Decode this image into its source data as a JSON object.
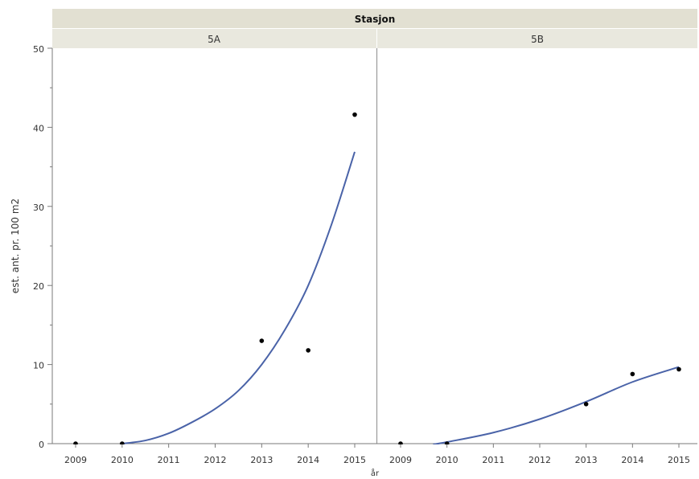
{
  "chart_data": {
    "type": "scatter",
    "group_title": "Stasjon",
    "xlabel": "år",
    "ylabel": "est. ant. pr. 100 m2",
    "ylim": [
      0,
      50
    ],
    "yticks": [
      0,
      10,
      20,
      30,
      40,
      50
    ],
    "xticks": [
      "2009",
      "2010",
      "2011",
      "2012",
      "2013",
      "2014",
      "2015"
    ],
    "colors": {
      "fit_line": "#4a63a8",
      "points": "#000000",
      "strip_bg": "#e2e0d2"
    },
    "panels": [
      {
        "name": "5A",
        "points": [
          {
            "x": 2009,
            "y": 0
          },
          {
            "x": 2010,
            "y": 0
          },
          {
            "x": 2013,
            "y": 13
          },
          {
            "x": 2014,
            "y": 11.8
          },
          {
            "x": 2015,
            "y": 41.6
          }
        ],
        "fit": [
          {
            "x": 2010,
            "y": 0
          },
          {
            "x": 2010.5,
            "y": 0.4
          },
          {
            "x": 2011,
            "y": 1.3
          },
          {
            "x": 2011.5,
            "y": 2.7
          },
          {
            "x": 2012,
            "y": 4.4
          },
          {
            "x": 2012.5,
            "y": 6.7
          },
          {
            "x": 2013,
            "y": 10
          },
          {
            "x": 2013.5,
            "y": 14.4
          },
          {
            "x": 2014,
            "y": 20
          },
          {
            "x": 2014.5,
            "y": 27.7
          },
          {
            "x": 2015,
            "y": 36.9
          }
        ]
      },
      {
        "name": "5B",
        "points": [
          {
            "x": 2009,
            "y": 0
          },
          {
            "x": 2010,
            "y": 0
          },
          {
            "x": 2013,
            "y": 5
          },
          {
            "x": 2014,
            "y": 8.8
          },
          {
            "x": 2015,
            "y": 9.4
          }
        ],
        "fit": [
          {
            "x": 2009.7,
            "y": -0.1
          },
          {
            "x": 2010,
            "y": 0.2
          },
          {
            "x": 2011,
            "y": 1.4
          },
          {
            "x": 2012,
            "y": 3.1
          },
          {
            "x": 2013,
            "y": 5.3
          },
          {
            "x": 2014,
            "y": 7.8
          },
          {
            "x": 2015,
            "y": 9.7
          }
        ]
      }
    ]
  }
}
